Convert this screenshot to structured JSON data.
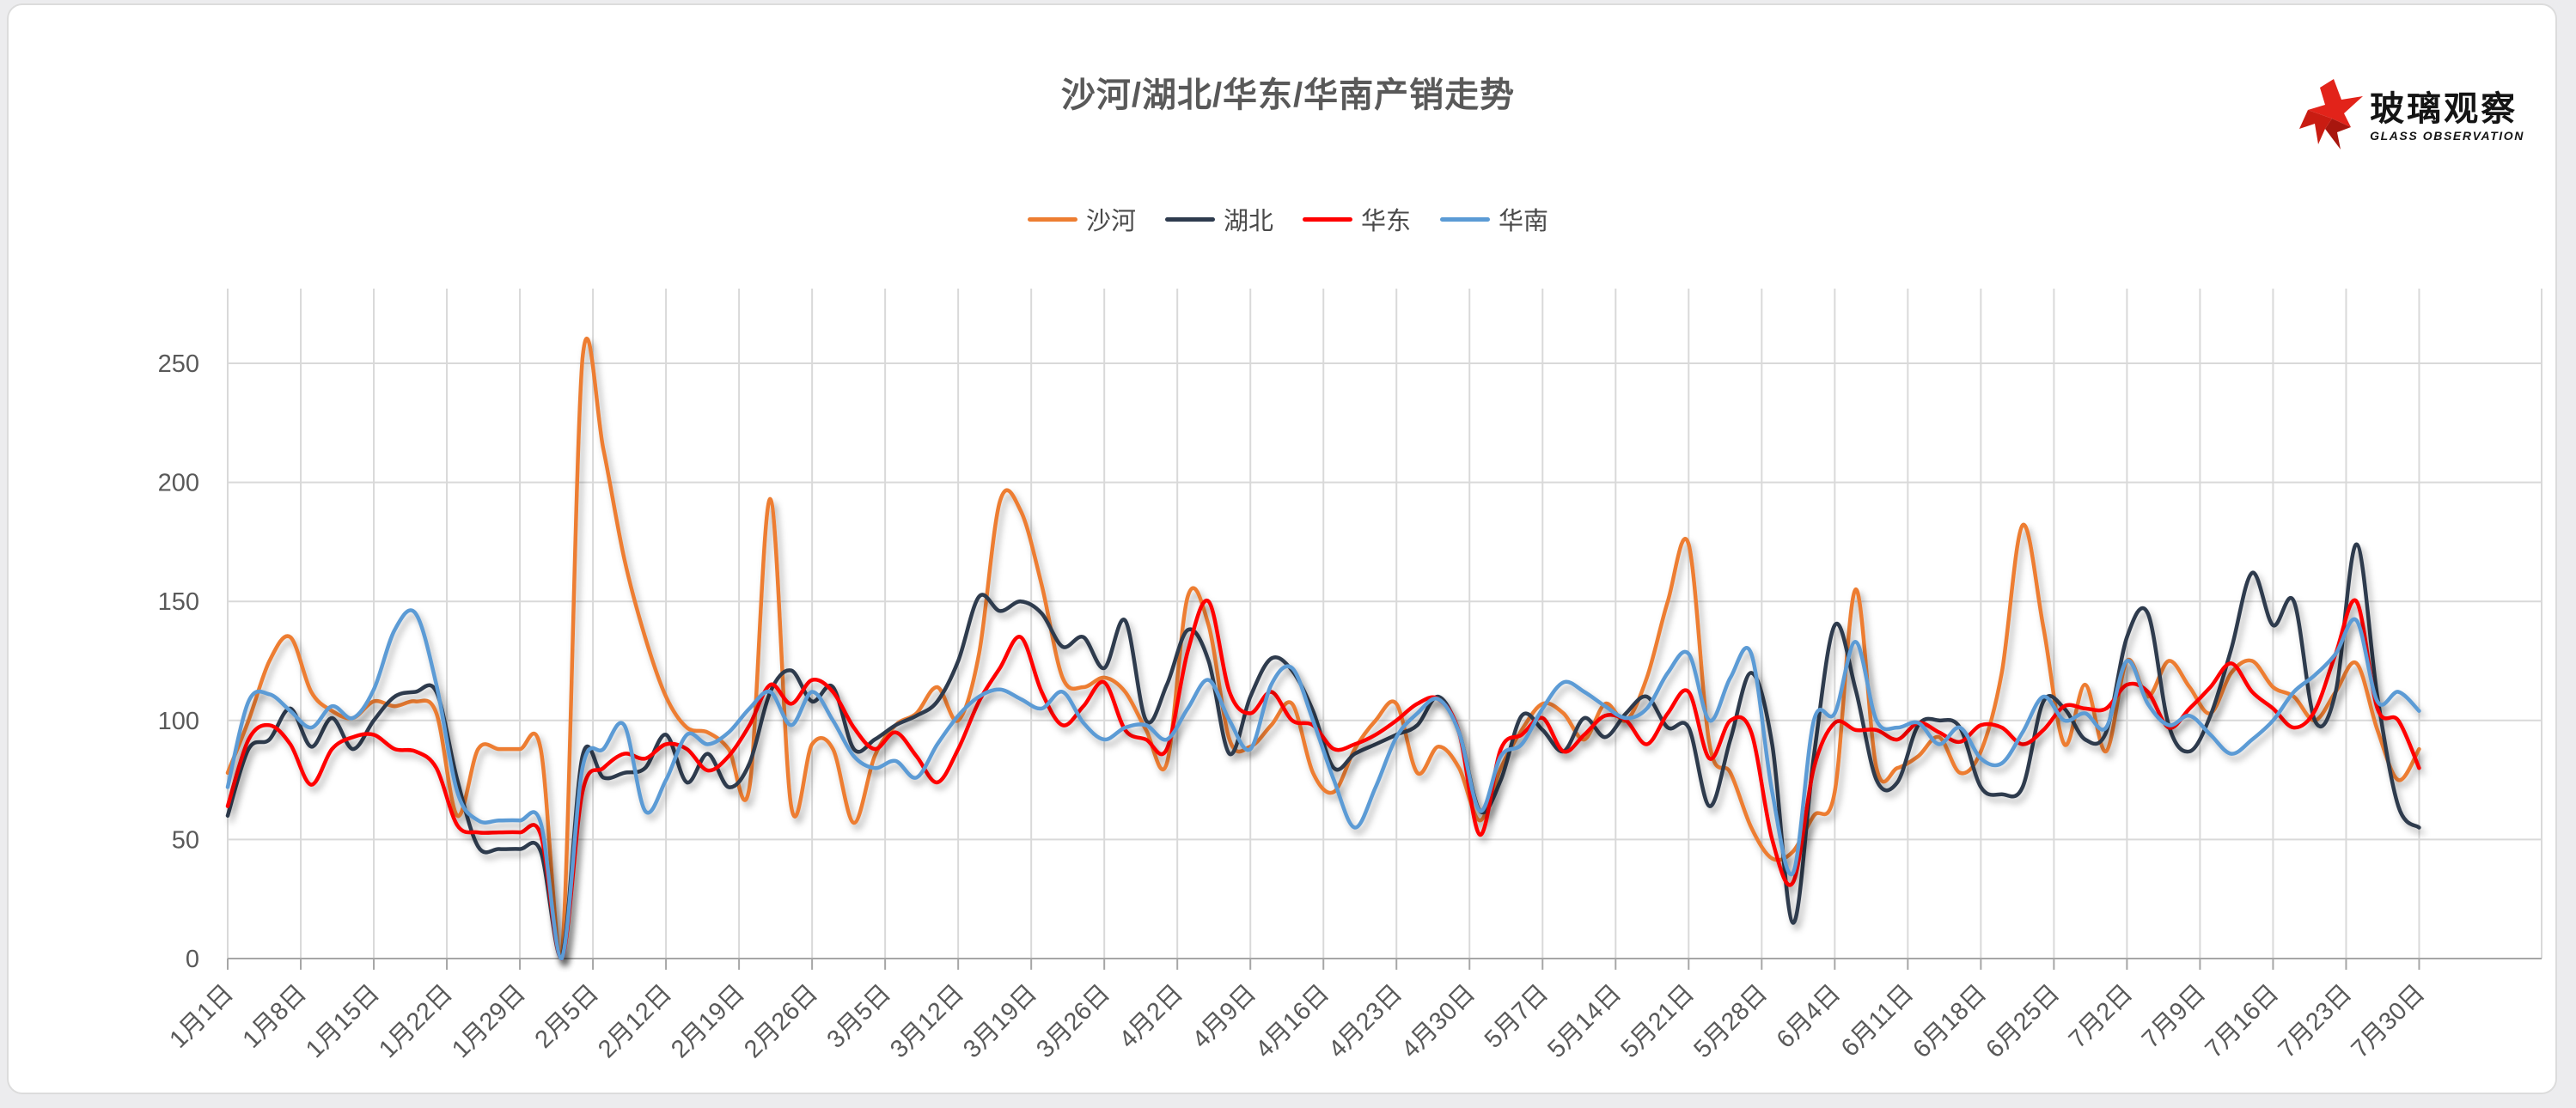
{
  "page": {
    "background": "#ffffff"
  },
  "logo": {
    "cn": "玻璃观察",
    "en": "GLASS OBSERVATION",
    "star_color": "#E2231A",
    "star_dark": "#A8160E"
  },
  "colors": {
    "title_text": "#595959",
    "axis_text": "#595959",
    "gridline": "#d9d9d9",
    "axis_line": "#a6a6a6",
    "legend_text": "#4a4a4a"
  },
  "chart_data": {
    "type": "line",
    "title": "沙河/湖北/华东/华南产销走势",
    "xlabel": "",
    "ylabel": "",
    "ylim": [
      0,
      250
    ],
    "y_ticks": [
      0,
      50,
      100,
      150,
      200,
      250
    ],
    "grid": true,
    "legend_position": "top",
    "x_tick_labels": [
      "1月1日",
      "1月8日",
      "1月15日",
      "1月22日",
      "1月29日",
      "2月5日",
      "2月12日",
      "2月19日",
      "2月26日",
      "3月5日",
      "3月12日",
      "3月19日",
      "3月26日",
      "4月2日",
      "4月9日",
      "4月16日",
      "4月23日",
      "4月30日",
      "5月7日",
      "5月14日",
      "5月21日",
      "5月28日",
      "6月4日",
      "6月11日",
      "6月18日",
      "6月25日",
      "7月2日",
      "7月9日",
      "7月16日",
      "7月23日",
      "7月30日"
    ],
    "x_range_days": [
      1,
      211
    ],
    "sample_step_days": 2,
    "series": [
      {
        "id": "shahe",
        "name": "沙河",
        "color": "#ED7D31",
        "values": [
          78,
          100,
          125,
          135,
          112,
          104,
          101,
          108,
          106,
          108,
          103,
          60,
          88,
          88,
          88,
          88,
          0,
          252,
          214,
          168,
          135,
          110,
          97,
          95,
          88,
          72,
          193,
          64,
          90,
          88,
          57,
          85,
          98,
          103,
          114,
          100,
          128,
          192,
          188,
          157,
          118,
          114,
          118,
          112,
          96,
          82,
          152,
          140,
          92,
          89,
          98,
          107,
          78,
          70,
          88,
          100,
          107,
          78,
          89,
          80,
          58,
          80,
          96,
          107,
          103,
          92,
          107,
          100,
          118,
          150,
          174,
          90,
          78,
          55,
          42,
          45,
          60,
          70,
          155,
          80,
          80,
          85,
          93,
          78,
          87,
          120,
          182,
          139,
          90,
          115,
          87,
          125,
          110,
          125,
          114,
          103,
          120,
          125,
          114,
          110,
          100,
          112,
          124,
          96,
          75,
          88
        ]
      },
      {
        "id": "hubei",
        "name": "湖北",
        "color": "#2E3B4E",
        "values": [
          60,
          88,
          92,
          105,
          89,
          101,
          88,
          100,
          110,
          112,
          112,
          75,
          47,
          46,
          46,
          45,
          0,
          85,
          76,
          78,
          80,
          94,
          74,
          86,
          72,
          82,
          112,
          121,
          108,
          114,
          88,
          92,
          98,
          102,
          108,
          125,
          152,
          146,
          150,
          145,
          131,
          135,
          122,
          142,
          100,
          115,
          138,
          125,
          86,
          110,
          126,
          121,
          104,
          80,
          86,
          90,
          94,
          98,
          110,
          95,
          62,
          75,
          102,
          96,
          87,
          101,
          93,
          103,
          110,
          97,
          97,
          64,
          92,
          120,
          90,
          15,
          85,
          140,
          113,
          75,
          74,
          98,
          100,
          97,
          72,
          69,
          72,
          108,
          105,
          92,
          95,
          135,
          145,
          98,
          87,
          102,
          130,
          162,
          140,
          150,
          100,
          112,
          174,
          110,
          64,
          55
        ]
      },
      {
        "id": "huadong",
        "name": "华东",
        "color": "#FF0000",
        "values": [
          64,
          92,
          98,
          90,
          73,
          88,
          93,
          94,
          88,
          87,
          80,
          56,
          53,
          53,
          53,
          52,
          0,
          70,
          80,
          86,
          84,
          90,
          88,
          79,
          85,
          98,
          115,
          107,
          117,
          112,
          97,
          88,
          95,
          85,
          74,
          88,
          108,
          122,
          135,
          112,
          98,
          106,
          116,
          96,
          92,
          88,
          129,
          150,
          112,
          103,
          112,
          100,
          98,
          88,
          90,
          94,
          100,
          107,
          109,
          95,
          52,
          88,
          94,
          101,
          87,
          94,
          102,
          100,
          90,
          103,
          112,
          84,
          100,
          95,
          50,
          32,
          80,
          99,
          96,
          96,
          92,
          99,
          95,
          91,
          98,
          97,
          90,
          96,
          106,
          105,
          105,
          115,
          112,
          97,
          105,
          114,
          124,
          112,
          105,
          97,
          104,
          128,
          150,
          105,
          100,
          80
        ]
      },
      {
        "id": "huanan",
        "name": "华南",
        "color": "#5B9BD5",
        "values": [
          72,
          108,
          111,
          104,
          97,
          106,
          101,
          113,
          138,
          145,
          115,
          70,
          58,
          58,
          58,
          57,
          0,
          80,
          88,
          98,
          62,
          75,
          94,
          90,
          95,
          105,
          112,
          98,
          112,
          100,
          85,
          80,
          83,
          76,
          90,
          102,
          110,
          113,
          109,
          105,
          112,
          99,
          92,
          97,
          98,
          92,
          105,
          117,
          100,
          88,
          115,
          122,
          100,
          75,
          55,
          72,
          93,
          103,
          109,
          95,
          62,
          85,
          90,
          105,
          116,
          112,
          106,
          101,
          105,
          120,
          128,
          100,
          118,
          128,
          70,
          36,
          100,
          103,
          133,
          100,
          97,
          99,
          90,
          97,
          84,
          82,
          95,
          110,
          100,
          103,
          97,
          125,
          107,
          98,
          102,
          94,
          86,
          92,
          100,
          112,
          119,
          128,
          142,
          108,
          112,
          104
        ]
      }
    ]
  }
}
